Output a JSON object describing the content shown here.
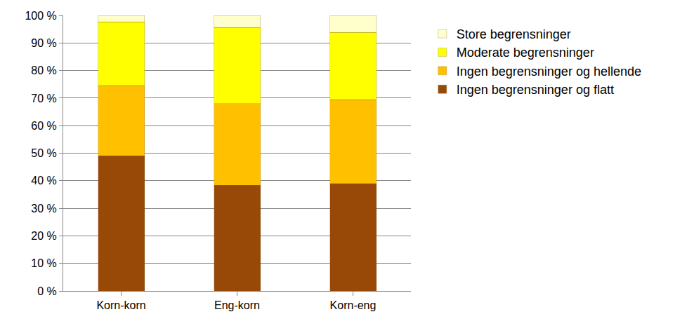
{
  "chart_data": {
    "type": "bar",
    "stacked": true,
    "categories": [
      "Korn-korn",
      "Eng-korn",
      "Korn-eng"
    ],
    "series": [
      {
        "name": "Ingen begrensninger og flatt",
        "color": "#984807",
        "values": [
          49.0,
          38.3,
          39.0
        ]
      },
      {
        "name": "Ingen begrensninger og hellende",
        "color": "#FFC000",
        "values": [
          25.5,
          29.7,
          30.4
        ]
      },
      {
        "name": "Moderate begrensninger",
        "color": "#FFFF00",
        "values": [
          23.2,
          27.6,
          24.4
        ]
      },
      {
        "name": "Store begrensninger",
        "color": "#FFFFCC",
        "values": [
          2.3,
          4.4,
          6.2
        ]
      }
    ],
    "ylim": [
      0,
      100
    ],
    "yticks": [
      {
        "value": 0,
        "label": "0 %"
      },
      {
        "value": 10,
        "label": "10 %"
      },
      {
        "value": 20,
        "label": "20 %"
      },
      {
        "value": 30,
        "label": "30 %"
      },
      {
        "value": 40,
        "label": "40 %"
      },
      {
        "value": 50,
        "label": "50 %"
      },
      {
        "value": 60,
        "label": "60 %"
      },
      {
        "value": 70,
        "label": "70 %"
      },
      {
        "value": 80,
        "label": "80 %"
      },
      {
        "value": 90,
        "label": "90 %"
      },
      {
        "value": 100,
        "label": "100 %"
      }
    ],
    "grid": true,
    "legend": "right"
  }
}
